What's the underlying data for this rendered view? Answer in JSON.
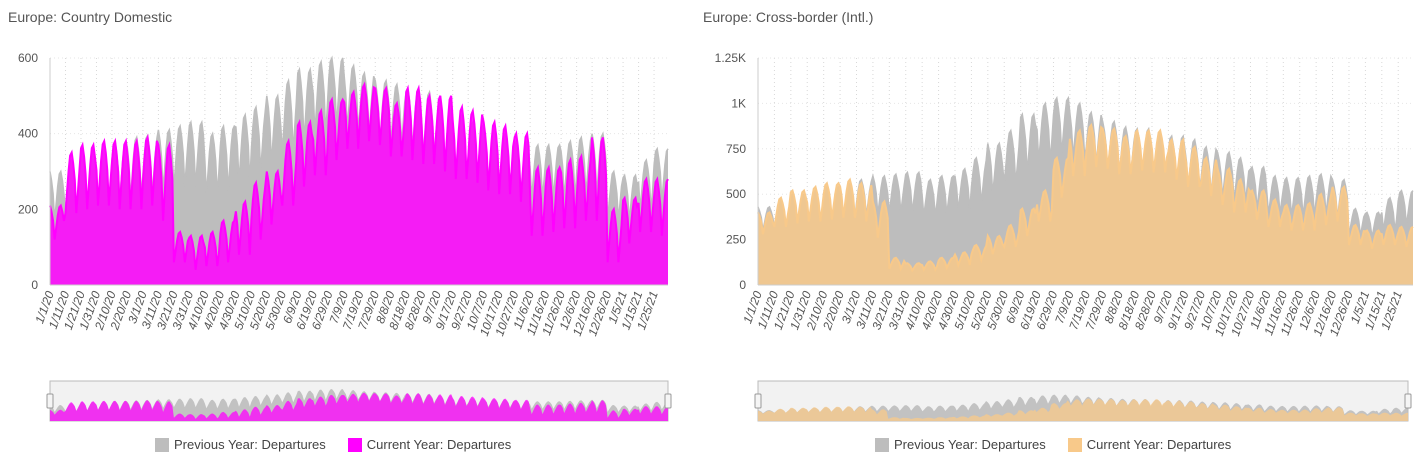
{
  "chart_data": [
    {
      "type": "area",
      "title": "Europe: Country Domestic",
      "xlabel": "",
      "ylabel": "",
      "ylim": [
        0,
        600
      ],
      "y_ticks": [
        "0",
        "200",
        "400",
        "600"
      ],
      "y_tick_values": [
        0,
        200,
        400,
        600
      ],
      "x_tick_labels": [
        "1/1/20",
        "1/11/20",
        "1/21/20",
        "1/31/20",
        "2/10/20",
        "2/20/20",
        "3/1/20",
        "3/11/20",
        "3/21/20",
        "3/31/20",
        "4/10/20",
        "4/20/20",
        "4/30/20",
        "5/10/20",
        "5/20/20",
        "5/30/20",
        "6/9/20",
        "6/19/20",
        "6/29/20",
        "7/9/20",
        "7/19/20",
        "7/29/20",
        "8/8/20",
        "8/18/20",
        "8/28/20",
        "9/7/20",
        "9/17/20",
        "9/27/20",
        "10/7/20",
        "10/17/20",
        "10/27/20",
        "11/6/20",
        "11/16/20",
        "11/26/20",
        "12/6/20",
        "12/16/20",
        "12/26/20",
        "1/5/21",
        "1/15/21",
        "1/25/21"
      ],
      "grid": true,
      "legend_position": "bottom",
      "navigator": true,
      "series": [
        {
          "name": "Previous Year: Departures",
          "color": "#bdbdbd",
          "weekly_peaks": [
            300,
            330,
            360,
            370,
            380,
            390,
            395,
            410,
            420,
            430,
            400,
            420,
            450,
            470,
            500,
            540,
            570,
            590,
            600,
            580,
            560,
            540,
            530,
            520,
            510,
            480,
            450,
            430,
            410,
            400,
            380,
            370,
            370,
            380,
            390,
            400,
            300,
            290,
            330,
            360
          ],
          "weekly_troughs": [
            170,
            190,
            200,
            210,
            220,
            230,
            240,
            250,
            260,
            260,
            240,
            250,
            270,
            300,
            320,
            350,
            380,
            400,
            420,
            410,
            400,
            380,
            370,
            360,
            340,
            320,
            300,
            290,
            270,
            260,
            240,
            230,
            230,
            230,
            240,
            240,
            170,
            170,
            200,
            220
          ]
        },
        {
          "name": "Current Year: Departures",
          "color": "#ff00ff",
          "weekly_peaks": [
            210,
            350,
            370,
            380,
            380,
            380,
            390,
            370,
            140,
            130,
            140,
            170,
            220,
            270,
            300,
            380,
            430,
            460,
            490,
            510,
            530,
            520,
            480,
            520,
            500,
            500,
            470,
            460,
            430,
            420,
            400,
            310,
            310,
            330,
            340,
            390,
            200,
            230,
            280,
            280
          ],
          "weekly_troughs": [
            120,
            190,
            200,
            210,
            200,
            200,
            210,
            170,
            60,
            40,
            50,
            60,
            80,
            120,
            160,
            210,
            260,
            290,
            330,
            360,
            380,
            370,
            340,
            330,
            320,
            300,
            280,
            270,
            250,
            240,
            220,
            130,
            140,
            150,
            170,
            170,
            60,
            110,
            140,
            130
          ]
        }
      ]
    },
    {
      "type": "area",
      "title": "Europe: Cross-border (Intl.)",
      "xlabel": "",
      "ylabel": "",
      "ylim": [
        0,
        1250
      ],
      "y_ticks": [
        "0",
        "250",
        "500",
        "750",
        "1K",
        "1.25K"
      ],
      "y_tick_values": [
        0,
        250,
        500,
        750,
        1000,
        1250
      ],
      "x_tick_labels": [
        "1/1/20",
        "1/11/20",
        "1/21/20",
        "1/31/20",
        "2/10/20",
        "2/20/20",
        "3/1/20",
        "3/11/20",
        "3/21/20",
        "3/31/20",
        "4/10/20",
        "4/20/20",
        "4/30/20",
        "5/10/20",
        "5/20/20",
        "5/30/20",
        "6/9/20",
        "6/19/20",
        "6/29/20",
        "7/9/20",
        "7/19/20",
        "7/29/20",
        "8/8/20",
        "8/18/20",
        "8/28/20",
        "9/7/20",
        "9/17/20",
        "9/27/20",
        "10/7/20",
        "10/17/20",
        "10/27/20",
        "11/6/20",
        "11/16/20",
        "11/26/20",
        "12/6/20",
        "12/16/20",
        "12/26/20",
        "1/5/21",
        "1/15/21",
        "1/25/21"
      ],
      "grid": true,
      "legend_position": "bottom",
      "navigator": true,
      "series": [
        {
          "name": "Previous Year: Departures",
          "color": "#bdbdbd",
          "weekly_peaks": [
            430,
            470,
            500,
            520,
            540,
            560,
            580,
            600,
            610,
            620,
            580,
            600,
            640,
            700,
            780,
            850,
            940,
            1000,
            1030,
            1000,
            950,
            900,
            870,
            860,
            840,
            820,
            800,
            760,
            730,
            700,
            650,
            600,
            590,
            600,
            610,
            580,
            420,
            400,
            480,
            520
          ],
          "weekly_troughs": [
            300,
            320,
            340,
            350,
            360,
            370,
            380,
            390,
            400,
            400,
            380,
            390,
            410,
            450,
            500,
            560,
            620,
            680,
            720,
            700,
            660,
            620,
            600,
            590,
            570,
            550,
            530,
            500,
            480,
            460,
            420,
            390,
            380,
            380,
            390,
            370,
            270,
            260,
            300,
            330
          ]
        },
        {
          "name": "Current Year: Departures",
          "color": "#f8c98a",
          "weekly_peaks": [
            400,
            480,
            520,
            540,
            560,
            580,
            560,
            460,
            150,
            120,
            130,
            150,
            180,
            220,
            270,
            330,
            420,
            520,
            700,
            850,
            880,
            860,
            820,
            850,
            850,
            800,
            760,
            700,
            640,
            580,
            520,
            470,
            440,
            450,
            500,
            540,
            330,
            300,
            330,
            320
          ],
          "weekly_troughs": [
            280,
            320,
            340,
            350,
            360,
            370,
            350,
            260,
            90,
            80,
            85,
            95,
            110,
            140,
            170,
            210,
            270,
            350,
            480,
            600,
            650,
            640,
            610,
            630,
            620,
            580,
            540,
            490,
            440,
            400,
            360,
            320,
            300,
            300,
            330,
            350,
            220,
            200,
            220,
            210
          ]
        }
      ]
    }
  ]
}
